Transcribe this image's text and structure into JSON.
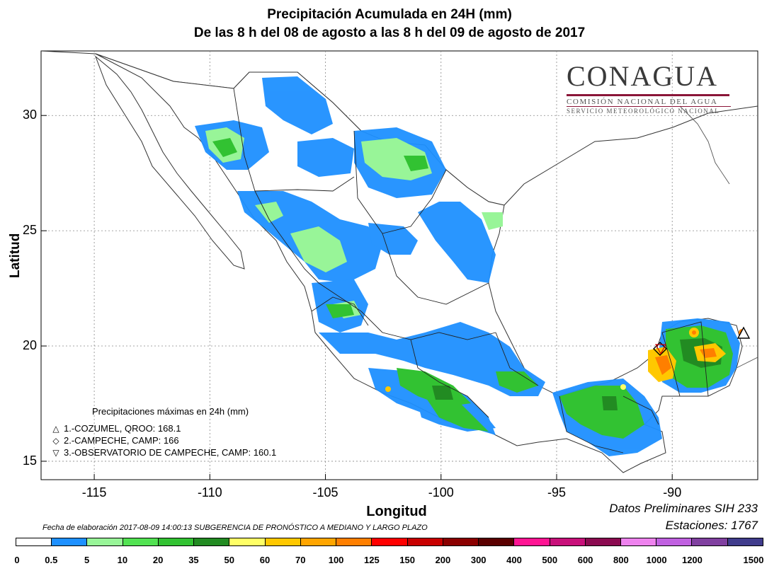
{
  "title": {
    "line1": "Precipitación Acumulada en 24H (mm)",
    "line2": "De las 8 h del 08 de agosto  a las 8 h del 09 de agosto de 2017"
  },
  "axes": {
    "xlabel": "Longitud",
    "ylabel": "Latitud",
    "x_ticks": [
      "-115",
      "-110",
      "-105",
      "-100",
      "-95",
      "-90"
    ],
    "y_ticks": [
      "30",
      "25",
      "20",
      "15"
    ],
    "x_range": [
      -117.3,
      -86.3
    ],
    "y_range": [
      14.2,
      32.8
    ]
  },
  "logo": {
    "brand": "CONAGUA",
    "line1": "COMISIÓN NACIONAL DEL AGUA",
    "line2": "SERVICIO METEOROLÓGICO NACIONAL"
  },
  "max_precip": {
    "header": "Precipitaciones máximas en 24h (mm)",
    "items": [
      {
        "symbol": "△",
        "text": "1.-COZUMEL, QROO: 168.1",
        "lon": -86.95,
        "lat": 20.5
      },
      {
        "symbol": "◇",
        "text": "2.-CAMPECHE, CAMP: 166",
        "lon": -90.53,
        "lat": 19.85
      },
      {
        "symbol": "▽",
        "text": "3.-OBSERVATORIO DE CAMPECHE, CAMP: 160.1",
        "lon": -90.5,
        "lat": 19.83
      }
    ]
  },
  "info": {
    "line1": "Datos Preliminares SIH 233",
    "line2": "Estaciones:  1767"
  },
  "footnote": "Fecha de elaboración 2017-08-09 14:00:13 SUBGERENCIA DE PRONÓSTICO A MEDIANO Y LARGO PLAZO",
  "colorbar": {
    "labels": [
      "0",
      "0.5",
      "5",
      "10",
      "20",
      "35",
      "50",
      "60",
      "70",
      "100",
      "125",
      "150",
      "200",
      "300",
      "400",
      "500",
      "600",
      "800",
      "1000",
      "1200",
      "1500"
    ],
    "colors": [
      "#ffffff",
      "#1e90ff",
      "#98f598",
      "#52e252",
      "#32c232",
      "#228b22",
      "#ffff66",
      "#ffc800",
      "#ffa500",
      "#ff7f00",
      "#ff0000",
      "#c80000",
      "#8b0000",
      "#5a0000",
      "#ff1493",
      "#c8107a",
      "#8b0a50",
      "#ee82ee",
      "#c060e0",
      "#8040a0",
      "#403c8c"
    ]
  },
  "chart_data": {
    "type": "heatmap",
    "title": "Precipitación Acumulada en 24H (mm)",
    "xlabel": "Longitud",
    "ylabel": "Latitud",
    "xlim": [
      -117.3,
      -86.3
    ],
    "ylim": [
      14.2,
      32.8
    ],
    "grid": true,
    "units": "mm",
    "levels": [
      0,
      0.5,
      5,
      10,
      20,
      35,
      50,
      60,
      70,
      100,
      125,
      150,
      200,
      300,
      400,
      500,
      600,
      800,
      1000,
      1200,
      1500
    ],
    "stations_max": [
      {
        "name": "COZUMEL, QROO",
        "value": 168.1,
        "lon": -86.95,
        "lat": 20.5
      },
      {
        "name": "CAMPECHE, CAMP",
        "value": 166,
        "lon": -90.53,
        "lat": 19.85
      },
      {
        "name": "OBSERVATORIO DE CAMPECHE, CAMP",
        "value": 160.1,
        "lon": -90.5,
        "lat": 19.83
      }
    ]
  }
}
